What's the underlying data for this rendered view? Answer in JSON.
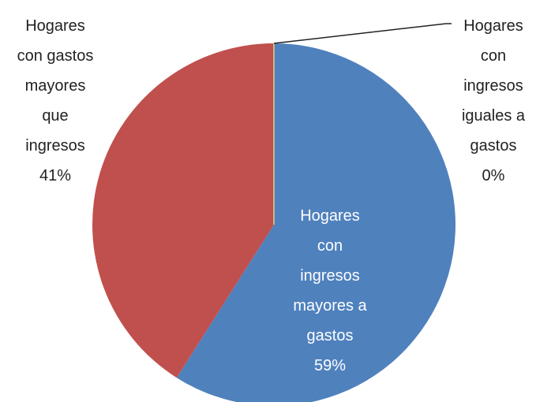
{
  "chart_data": {
    "type": "pie",
    "categories": [
      "Hogares con ingresos mayores a gastos",
      "Hogares con gastos mayores que ingresos",
      "Hogares con ingresos iguales a gastos"
    ],
    "values": [
      59,
      41,
      0
    ],
    "value_labels": [
      "59%",
      "41%",
      "0%"
    ],
    "colors": [
      "#4f81bd",
      "#c0504d",
      "#c9b88a"
    ]
  }
}
